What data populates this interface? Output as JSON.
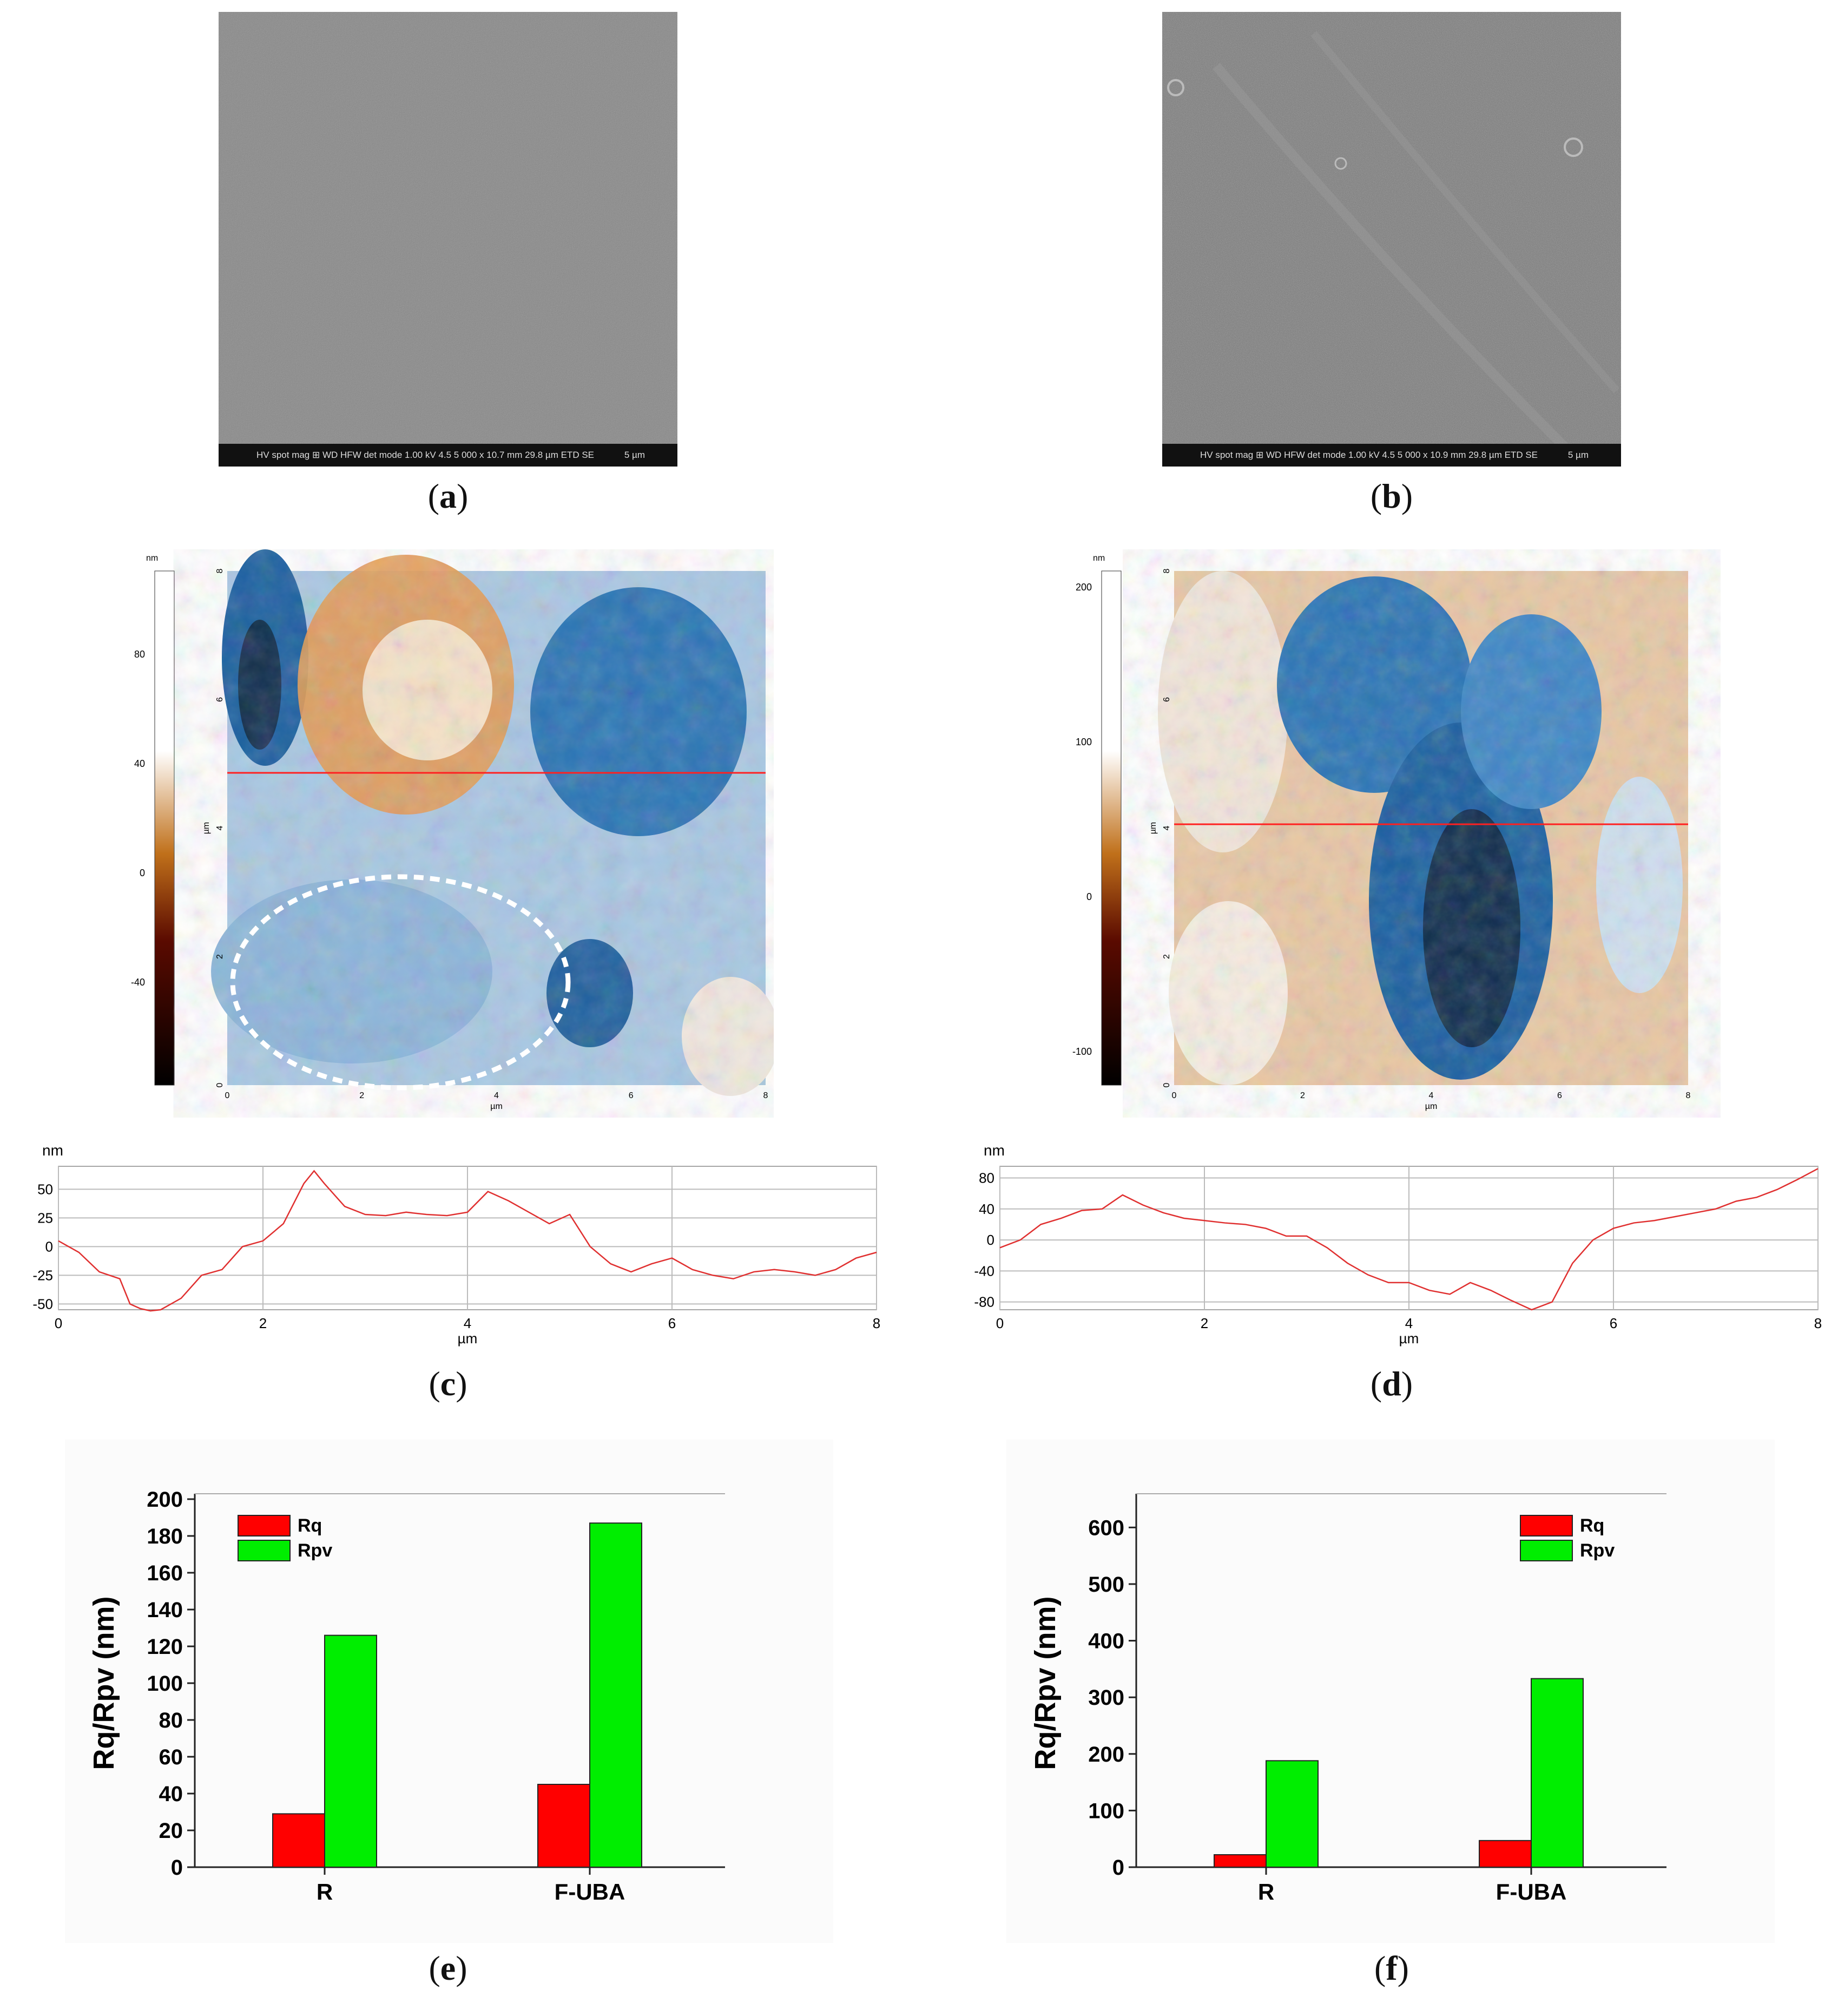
{
  "captions": {
    "a": "a",
    "b": "b",
    "c": "c",
    "d": "d",
    "e": "e",
    "f": "f"
  },
  "sem": {
    "a": {
      "bar": [
        "HV",
        "spot",
        "mag ⊞",
        "WD",
        "HFW",
        "det",
        "mode"
      ],
      "values": "1.00 kV  4.5  5 000 x  10.7 mm  29.8 µm  ETD  SE",
      "scale": "5 µm"
    },
    "b": {
      "bar": [
        "HV",
        "spot",
        "mag ⊞",
        "WD",
        "HFW",
        "det",
        "mode"
      ],
      "values": "1.00 kV  4.5  5 000 x  10.9 mm  29.8 µm  ETD  SE",
      "scale": "5 µm"
    }
  },
  "afm": {
    "c": {
      "colorbar_unit": "nm",
      "colorbar_ticks": [
        "80",
        "40",
        "0",
        "-40"
      ],
      "axis_unit": "µm",
      "ticks": [
        "0",
        "2",
        "4",
        "6",
        "8"
      ]
    },
    "d": {
      "colorbar_unit": "nm",
      "colorbar_ticks": [
        "200",
        "100",
        "0",
        "-100"
      ],
      "axis_unit": "µm",
      "ticks": [
        "0",
        "2",
        "4",
        "6",
        "8"
      ]
    }
  },
  "chart_data": [
    {
      "type": "line",
      "panel": "c",
      "ylabel": "nm",
      "xlabel": "µm",
      "xlim": [
        0,
        8
      ],
      "ylim": [
        -55,
        70
      ],
      "yticks": [
        50,
        25,
        0,
        -25,
        -50
      ],
      "xticks": [
        0,
        2,
        4,
        6,
        8
      ],
      "color": "#e03030",
      "x": [
        0,
        0.2,
        0.4,
        0.6,
        0.7,
        0.8,
        0.9,
        1.0,
        1.2,
        1.4,
        1.6,
        1.8,
        2.0,
        2.2,
        2.4,
        2.5,
        2.6,
        2.8,
        3.0,
        3.2,
        3.4,
        3.6,
        3.8,
        4.0,
        4.2,
        4.4,
        4.6,
        4.8,
        5.0,
        5.2,
        5.4,
        5.6,
        5.8,
        6.0,
        6.2,
        6.4,
        6.6,
        6.8,
        7.0,
        7.2,
        7.4,
        7.6,
        7.8,
        8.0
      ],
      "y": [
        5,
        -5,
        -22,
        -28,
        -50,
        -54,
        -56,
        -55,
        -45,
        -25,
        -20,
        0,
        5,
        20,
        55,
        66,
        55,
        35,
        28,
        27,
        30,
        28,
        27,
        30,
        48,
        40,
        30,
        20,
        28,
        0,
        -15,
        -22,
        -15,
        -10,
        -20,
        -25,
        -28,
        -22,
        -20,
        -22,
        -25,
        -20,
        -10,
        -5
      ]
    },
    {
      "type": "line",
      "panel": "d",
      "ylabel": "nm",
      "xlabel": "µm",
      "xlim": [
        0,
        8
      ],
      "ylim": [
        -90,
        95
      ],
      "yticks": [
        80,
        40,
        0,
        -40,
        -80
      ],
      "xticks": [
        0,
        2,
        4,
        6,
        8
      ],
      "color": "#e03030",
      "x": [
        0,
        0.2,
        0.4,
        0.6,
        0.8,
        1.0,
        1.2,
        1.4,
        1.6,
        1.8,
        2.0,
        2.2,
        2.4,
        2.6,
        2.8,
        3.0,
        3.2,
        3.4,
        3.6,
        3.8,
        4.0,
        4.2,
        4.4,
        4.6,
        4.8,
        5.0,
        5.2,
        5.4,
        5.6,
        5.8,
        6.0,
        6.2,
        6.4,
        6.6,
        6.8,
        7.0,
        7.2,
        7.4,
        7.6,
        7.8,
        8.0
      ],
      "y": [
        -10,
        0,
        20,
        28,
        38,
        40,
        58,
        45,
        35,
        28,
        25,
        22,
        20,
        15,
        5,
        5,
        -10,
        -30,
        -45,
        -55,
        -55,
        -65,
        -70,
        -55,
        -65,
        -78,
        -90,
        -80,
        -30,
        0,
        15,
        22,
        25,
        30,
        35,
        40,
        50,
        55,
        65,
        78,
        92
      ]
    },
    {
      "type": "bar",
      "panel": "e",
      "categories": [
        "R",
        "F-UBA"
      ],
      "series": [
        {
          "name": "Rq",
          "values": [
            29,
            45
          ],
          "color": "#ff0000"
        },
        {
          "name": "Rpv",
          "values": [
            126,
            187
          ],
          "color": "#00ee00"
        }
      ],
      "ylabel": "Rq/Rpv (nm)",
      "ylim": [
        0,
        200
      ],
      "yticks": [
        0,
        20,
        40,
        60,
        80,
        100,
        120,
        140,
        160,
        180,
        200
      ],
      "legend": "top-left"
    },
    {
      "type": "bar",
      "panel": "f",
      "categories": [
        "R",
        "F-UBA"
      ],
      "series": [
        {
          "name": "Rq",
          "values": [
            22,
            47
          ],
          "color": "#ff0000"
        },
        {
          "name": "Rpv",
          "values": [
            188,
            333
          ],
          "color": "#00ee00"
        }
      ],
      "ylabel": "Rq/Rpv (nm)",
      "ylim": [
        0,
        650
      ],
      "yticks": [
        0,
        100,
        200,
        300,
        400,
        500,
        600
      ],
      "legend": "top-right"
    }
  ]
}
